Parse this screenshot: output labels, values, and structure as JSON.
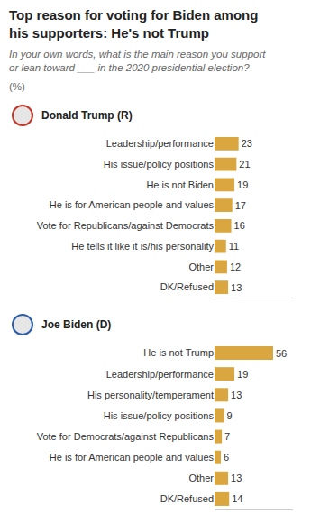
{
  "title": "Top reason for voting for Biden among his supporters: He's not Trump",
  "subtitle": "In your own words, what is the main reason you support or lean toward ___ in the 2020 presidential election?",
  "unit": "(%)",
  "chart_data": [
    {
      "type": "bar",
      "title": "Donald Trump (R)",
      "orientation": "horizontal",
      "data_labels": true,
      "tick_labels": "y",
      "categories": [
        "Leadership/performance",
        "His issue/policy positions",
        "He is not Biden",
        "He is for American people and values",
        "Vote for Republicans/against Democrats",
        "He tells it like it is/his personality",
        "Other",
        "DK/Refused"
      ],
      "values": [
        23,
        21,
        19,
        17,
        16,
        11,
        12,
        13
      ],
      "color": "#d9a63f",
      "xlim": [
        0,
        75
      ],
      "xticks": [],
      "grid": false
    },
    {
      "type": "bar",
      "title": "Joe Biden (D)",
      "orientation": "horizontal",
      "data_labels": true,
      "tick_labels": "y",
      "categories": [
        "He is not Trump",
        "Leadership/performance",
        "His personality/temperament",
        "His issue/policy positions",
        "Vote for Democrats/against Republicans",
        "He is for American people and values",
        "Other",
        "DK/Refused"
      ],
      "values": [
        56,
        19,
        13,
        9,
        7,
        6,
        13,
        14
      ],
      "color": "#d9a63f",
      "xlim": [
        0,
        75
      ],
      "xticks": [],
      "grid": false
    }
  ]
}
